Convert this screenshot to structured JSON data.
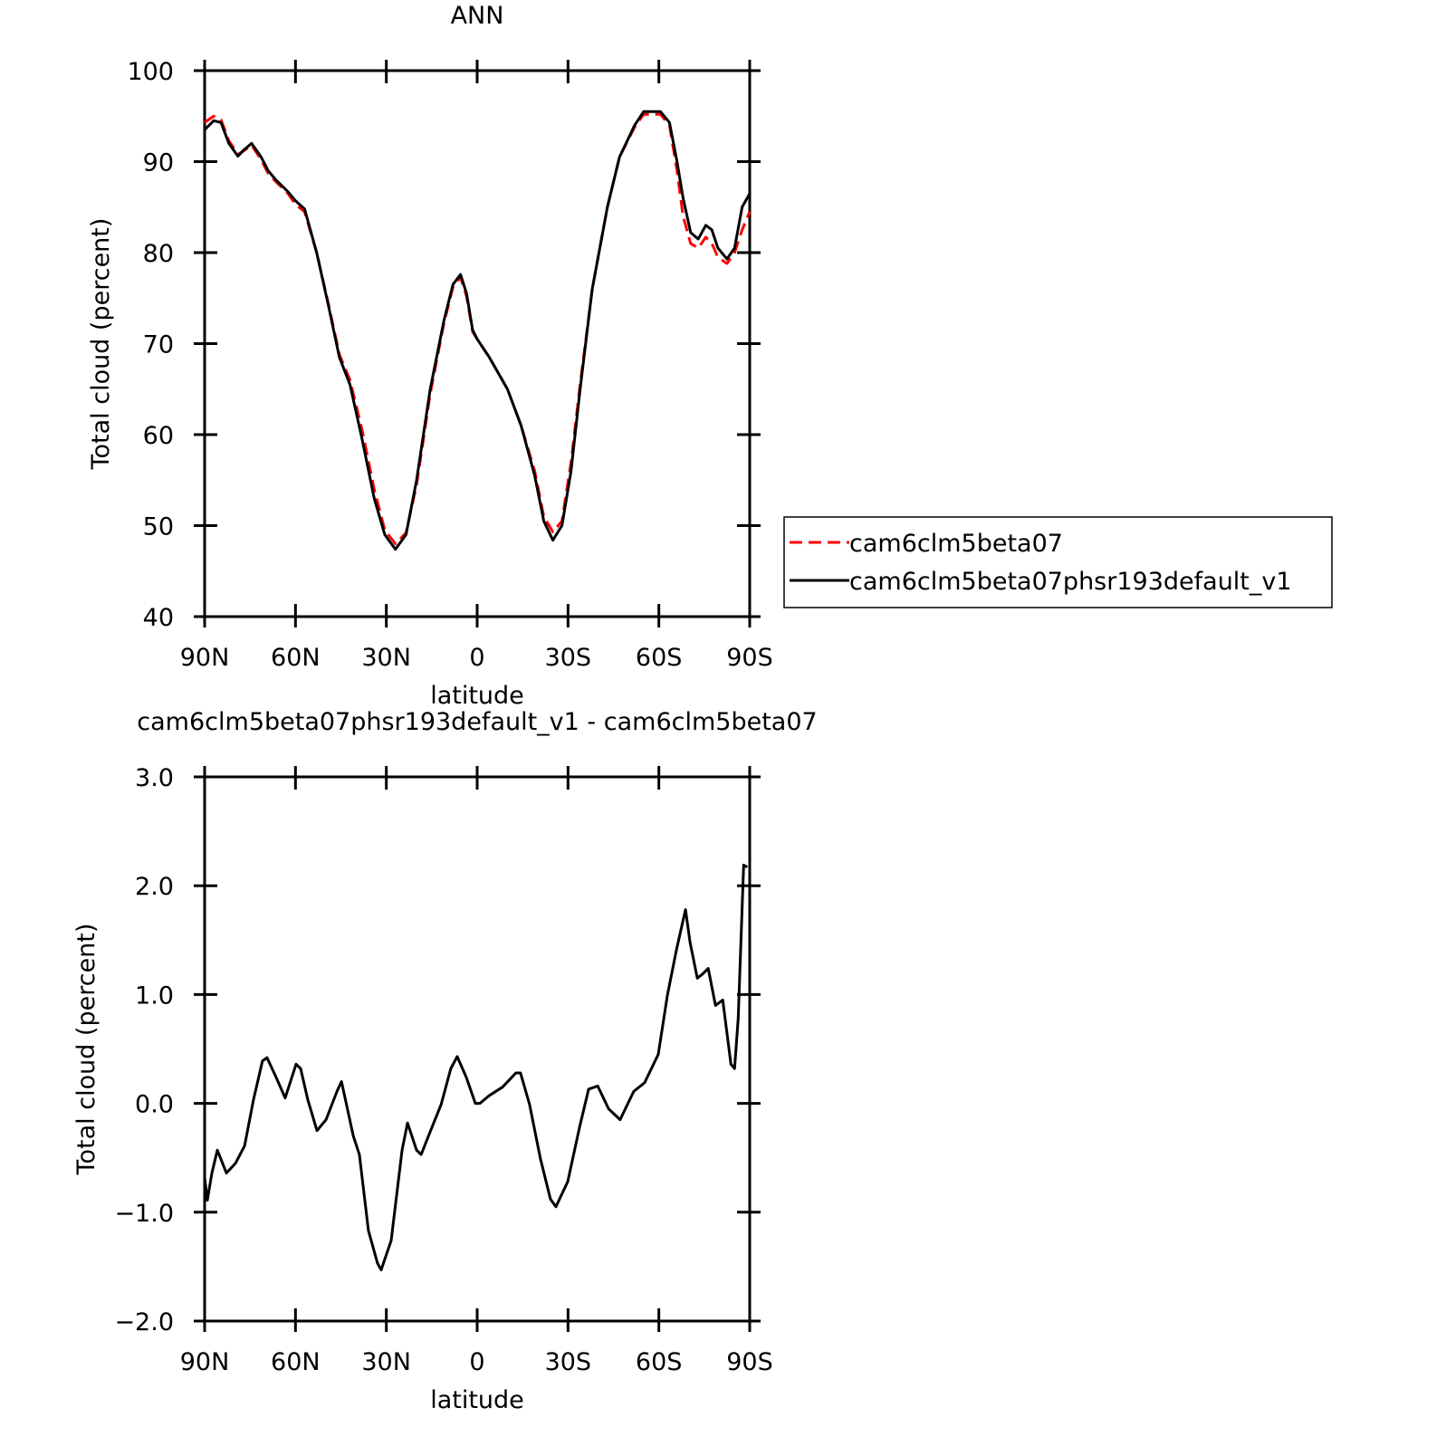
{
  "chart_data": [
    {
      "type": "line",
      "title": "ANN",
      "xlabel": "latitude",
      "ylabel": "Total cloud (percent)",
      "x": [
        90,
        87,
        84.6,
        82,
        79,
        77,
        74.5,
        71.5,
        69,
        66.5,
        62.5,
        60,
        57,
        53,
        49,
        45.5,
        42,
        38,
        34,
        30.5,
        27,
        23.5,
        20,
        15.5,
        11,
        8,
        5.5,
        3.5,
        1.5,
        0,
        -4,
        -10,
        -14.5,
        -19,
        -22,
        -25,
        -28,
        -31,
        -34,
        -38,
        -43,
        -47,
        -52,
        -55,
        -60.5,
        -63.5,
        -66,
        -68,
        -70.5,
        -73,
        -75.5,
        -77.5,
        -79.5,
        -82.5,
        -85,
        -87.5,
        -90
      ],
      "series": [
        {
          "name": "cam6clm5beta07",
          "color": "#ff0000",
          "line_style": "dashed",
          "values": [
            94.3,
            95,
            94.6,
            92.3,
            90.8,
            91.2,
            91.8,
            90.3,
            88.7,
            87.8,
            86.5,
            85.3,
            84.5,
            80,
            74.2,
            68.8,
            66,
            60.5,
            54,
            49.5,
            48,
            49.2,
            54.5,
            64.5,
            72.2,
            76.2,
            77.3,
            75.2,
            71.3,
            70.5,
            68.5,
            65,
            61,
            56,
            51,
            49.3,
            50.5,
            57,
            65.5,
            76,
            85,
            90.5,
            93.8,
            95.2,
            95.2,
            94,
            89,
            84,
            81,
            80.5,
            81.7,
            81,
            79.5,
            78.8,
            80,
            82.5,
            84.5
          ]
        },
        {
          "name": "cam6clm5beta07phsr193default_v1",
          "color": "#000000",
          "line_style": "solid",
          "values": [
            93.5,
            94.5,
            94.3,
            92,
            90.6,
            91.3,
            92,
            90.6,
            89,
            88,
            86.7,
            85.7,
            84.8,
            80,
            74,
            68.5,
            65.5,
            59.5,
            53,
            49,
            47.4,
            49,
            55,
            65,
            72.5,
            76.5,
            77.6,
            75.5,
            71.5,
            70.5,
            68.5,
            65,
            61,
            55.5,
            50.5,
            48.4,
            50,
            56,
            65,
            76,
            85,
            90.5,
            94,
            95.5,
            95.5,
            94.3,
            90,
            86,
            82.2,
            81.5,
            83,
            82.5,
            80.5,
            79.3,
            80.5,
            85,
            86.5
          ]
        }
      ],
      "xlim": [
        90,
        -90
      ],
      "xticks": [
        {
          "value": 90,
          "label": "90N"
        },
        {
          "value": 60,
          "label": "60N"
        },
        {
          "value": 30,
          "label": "30N"
        },
        0,
        {
          "value": -30,
          "label": "30S"
        },
        {
          "value": -60,
          "label": "60S"
        },
        {
          "value": -90,
          "label": "90S"
        }
      ],
      "ylim": [
        40,
        100
      ],
      "yticks": [
        40,
        50,
        60,
        70,
        80,
        90,
        100
      ],
      "legend": "right"
    },
    {
      "type": "line",
      "title": "cam6clm5beta07phsr193default_v1 - cam6clm5beta07",
      "xlabel": "latitude",
      "ylabel": "Total cloud (percent)",
      "x": [
        90,
        89.1,
        87.6,
        85.8,
        82.8,
        79.8,
        76.8,
        73.9,
        70.9,
        69.4,
        66.4,
        63.4,
        59.8,
        58.3,
        55.9,
        52.9,
        49.9,
        46.3,
        44.8,
        40.9,
        38.9,
        35.9,
        32.9,
        31.7,
        28.4,
        24.8,
        23,
        20,
        18.5,
        15.5,
        11.9,
        8.7,
        6.6,
        3.6,
        0.6,
        -0.9,
        -3.9,
        -8.4,
        -12.8,
        -14.3,
        -17.3,
        -20.9,
        -24.2,
        -26,
        -29.9,
        -33.8,
        -36.8,
        -39.8,
        -43.4,
        -47.2,
        -51.7,
        -55.3,
        -59.8,
        -62.8,
        -65.8,
        -68.8,
        -70.3,
        -72.7,
        -74.5,
        -76.3,
        -78.7,
        -81.1,
        -83.8,
        -85,
        -86.2,
        -88,
        -89.2
      ],
      "series": [
        {
          "name": null,
          "color": "#000000",
          "line_style": "solid",
          "values": [
            -0.68,
            -0.89,
            -0.64,
            -0.43,
            -0.64,
            -0.55,
            -0.39,
            0.03,
            0.39,
            0.42,
            0.24,
            0.05,
            0.36,
            0.32,
            0.03,
            -0.25,
            -0.15,
            0.11,
            0.2,
            -0.3,
            -0.47,
            -1.17,
            -1.47,
            -1.53,
            -1.26,
            -0.43,
            -0.18,
            -0.43,
            -0.47,
            -0.26,
            -0.01,
            0.32,
            0.43,
            0.24,
            0,
            0,
            0.07,
            0.15,
            0.28,
            0.28,
            -0.01,
            -0.51,
            -0.88,
            -0.95,
            -0.72,
            -0.22,
            0.13,
            0.16,
            -0.05,
            -0.15,
            0.11,
            0.19,
            0.45,
            0.99,
            1.41,
            1.78,
            1.48,
            1.15,
            1.19,
            1.24,
            0.9,
            0.95,
            0.36,
            0.32,
            0.78,
            2.19,
            2.17
          ]
        }
      ],
      "xlim": [
        90,
        -90
      ],
      "xticks": [
        {
          "value": 90,
          "label": "90N"
        },
        {
          "value": 60,
          "label": "60N"
        },
        {
          "value": 30,
          "label": "30N"
        },
        0,
        {
          "value": -30,
          "label": "30S"
        },
        {
          "value": -60,
          "label": "60S"
        },
        {
          "value": -90,
          "label": "90S"
        }
      ],
      "ylim": [
        -2,
        3
      ],
      "yticks": [
        {
          "value": -2,
          "label": "−2.0"
        },
        {
          "value": -1,
          "label": "−1.0"
        },
        {
          "value": 0,
          "label": "0.0"
        },
        {
          "value": 1,
          "label": "1.0"
        },
        {
          "value": 2,
          "label": "2.0"
        },
        {
          "value": 3,
          "label": "3.0"
        }
      ]
    }
  ]
}
